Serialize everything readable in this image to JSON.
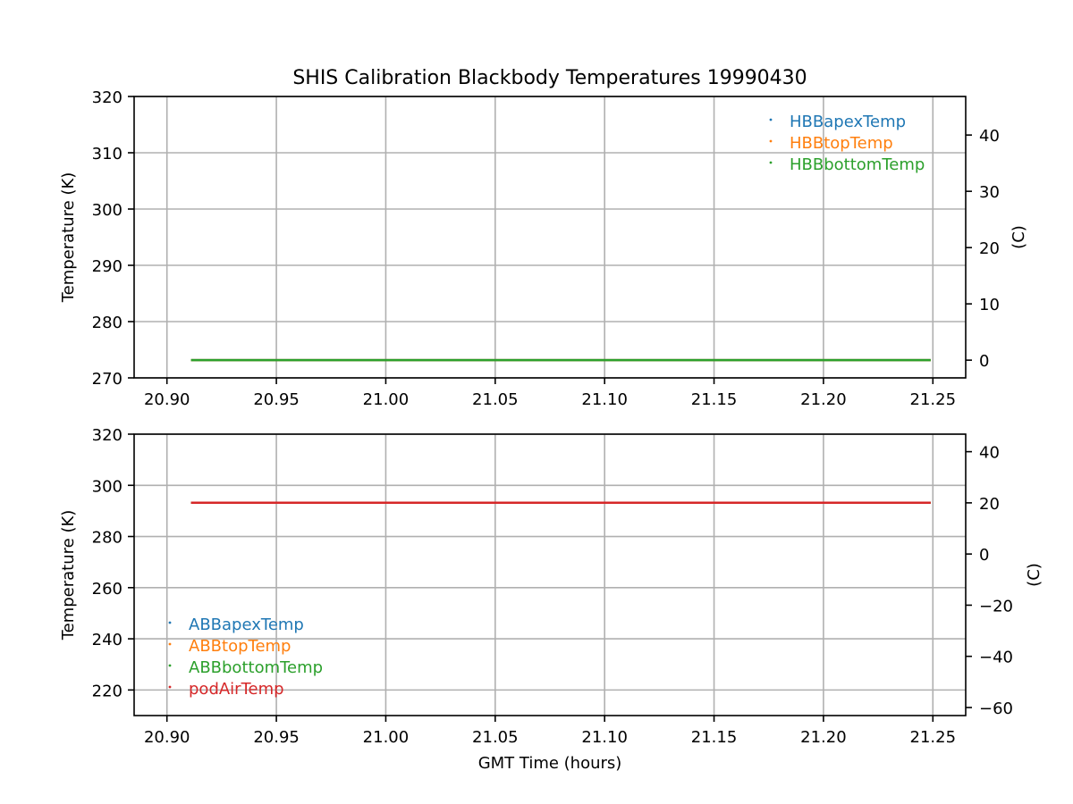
{
  "title": "SHIS Calibration Blackbody Temperatures 19990430",
  "colors": {
    "blue": "#1f77b4",
    "orange": "#ff7f0e",
    "green": "#2ca02c",
    "red": "#d62728",
    "grid": "#b0b0b0"
  },
  "chart_data": [
    {
      "type": "scatter",
      "xlabel": "",
      "ylabel": "Temperature (K)",
      "ylabel_right": "(C)",
      "xlim": [
        20.885,
        21.265
      ],
      "ylim": [
        270,
        320
      ],
      "ylim_right": [
        -3.15,
        46.85
      ],
      "x_ticks": [
        20.9,
        20.95,
        21.0,
        21.05,
        21.1,
        21.15,
        21.2,
        21.25
      ],
      "x_tick_labels": [
        "20.90",
        "20.95",
        "21.00",
        "21.05",
        "21.10",
        "21.15",
        "21.20",
        "21.25"
      ],
      "y_ticks": [
        270,
        280,
        290,
        300,
        310,
        320
      ],
      "y_tick_labels": [
        "270",
        "280",
        "290",
        "300",
        "310",
        "320"
      ],
      "y_right_ticks": [
        0,
        10,
        20,
        30,
        40
      ],
      "y_right_tick_labels": [
        "0",
        "10",
        "20",
        "30",
        "40"
      ],
      "grid": true,
      "legend_position": "top-right",
      "series": [
        {
          "name": "HBBapexTemp",
          "color": "#1f77b4",
          "x_range": [
            20.911,
            21.249
          ],
          "y": 273.15
        },
        {
          "name": "HBBtopTemp",
          "color": "#ff7f0e",
          "x_range": [
            20.911,
            21.249
          ],
          "y": 273.15
        },
        {
          "name": "HBBbottomTemp",
          "color": "#2ca02c",
          "x_range": [
            20.911,
            21.249
          ],
          "y": 273.15
        }
      ]
    },
    {
      "type": "scatter",
      "xlabel": "GMT Time (hours)",
      "ylabel": "Temperature (K)",
      "ylabel_right": "(C)",
      "xlim": [
        20.885,
        21.265
      ],
      "ylim": [
        210,
        320
      ],
      "ylim_right": [
        -63.15,
        46.85
      ],
      "x_ticks": [
        20.9,
        20.95,
        21.0,
        21.05,
        21.1,
        21.15,
        21.2,
        21.25
      ],
      "x_tick_labels": [
        "20.90",
        "20.95",
        "21.00",
        "21.05",
        "21.10",
        "21.15",
        "21.20",
        "21.25"
      ],
      "y_ticks": [
        220,
        240,
        260,
        280,
        300,
        320
      ],
      "y_tick_labels": [
        "220",
        "240",
        "260",
        "280",
        "300",
        "320"
      ],
      "y_right_ticks": [
        -60,
        -40,
        -20,
        0,
        20,
        40
      ],
      "y_right_tick_labels": [
        "−60",
        "−40",
        "−20",
        "0",
        "20",
        "40"
      ],
      "grid": true,
      "legend_position": "lower-left",
      "series": [
        {
          "name": "ABBapexTemp",
          "color": "#1f77b4",
          "x_range": [
            20.911,
            21.249
          ],
          "y": 293.2
        },
        {
          "name": "ABBtopTemp",
          "color": "#ff7f0e",
          "x_range": [
            20.911,
            21.249
          ],
          "y": 293.2
        },
        {
          "name": "ABBbottomTemp",
          "color": "#2ca02c",
          "x_range": [
            20.911,
            21.249
          ],
          "y": 293.2
        },
        {
          "name": "podAirTemp",
          "color": "#d62728",
          "x_range": [
            20.911,
            21.249
          ],
          "y": 293.2
        }
      ]
    }
  ]
}
